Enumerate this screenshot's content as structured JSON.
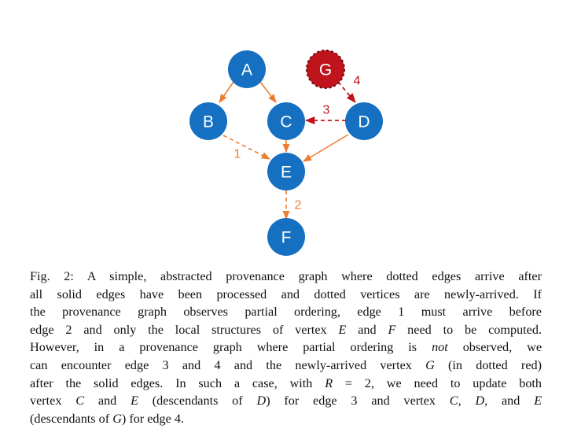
{
  "colors": {
    "node_fill": "#1670c1",
    "new_node_fill": "#c0141c",
    "new_node_border": "#7a0d12",
    "orange": "#ed7d31",
    "red": "#c0141c"
  },
  "graph": {
    "nodes": [
      {
        "id": "A",
        "label": "A",
        "style": "solid"
      },
      {
        "id": "B",
        "label": "B",
        "style": "solid"
      },
      {
        "id": "C",
        "label": "C",
        "style": "solid"
      },
      {
        "id": "D",
        "label": "D",
        "style": "solid"
      },
      {
        "id": "E",
        "label": "E",
        "style": "solid"
      },
      {
        "id": "F",
        "label": "F",
        "style": "solid"
      },
      {
        "id": "G",
        "label": "G",
        "style": "dotted-new"
      }
    ],
    "edges": [
      {
        "from": "A",
        "to": "B",
        "style": "solid",
        "label": ""
      },
      {
        "from": "A",
        "to": "C",
        "style": "solid",
        "label": ""
      },
      {
        "from": "C",
        "to": "E",
        "style": "solid",
        "label": ""
      },
      {
        "from": "D",
        "to": "E",
        "style": "solid",
        "label": ""
      },
      {
        "from": "B",
        "to": "E",
        "style": "dotted",
        "label": "1"
      },
      {
        "from": "E",
        "to": "F",
        "style": "dotted",
        "label": "2"
      },
      {
        "from": "D",
        "to": "C",
        "style": "dotted-red",
        "label": "3"
      },
      {
        "from": "G",
        "to": "D",
        "style": "dotted-red",
        "label": "4"
      }
    ]
  },
  "caption": {
    "l1_fig": "Fig. 2:",
    "l1_text": "A simple, abstracted provenance graph where dotted edges arrive after",
    "l2": "all solid edges have been processed and dotted vertices are newly-arrived. If",
    "l3": "the provenance graph observes partial ordering, edge 1 must arrive before",
    "l4a": "edge 2 and only the local structures of vertex",
    "l4_v1": "E",
    "l4b": "and",
    "l4_v2": "F",
    "l4c": "need to be computed.",
    "l5a": "However, in a provenance graph where partial ordering is",
    "l5_not": "not",
    "l5b": "observed, we",
    "l6a": "can encounter edge 3 and 4 and the newly-arrived vertex",
    "l6_v": "G",
    "l6b": "(in dotted red)",
    "l7a": "after the solid edges. In such a case, with",
    "l7_v": "R",
    "l7b": "= 2, we need to update both",
    "l8a": "vertex",
    "l8_v1": "C",
    "l8b": "and",
    "l8_v2": "E",
    "l8c": "(descendants of",
    "l8_v3": "D",
    "l8d": ") for edge 3 and vertex",
    "l8_v4": "C",
    "l8e": ",",
    "l8_v5": "D",
    "l8f": ", and",
    "l8_v6": "E",
    "l9a": "(descendants of",
    "l9_v": "G",
    "l9b": ") for edge 4."
  }
}
